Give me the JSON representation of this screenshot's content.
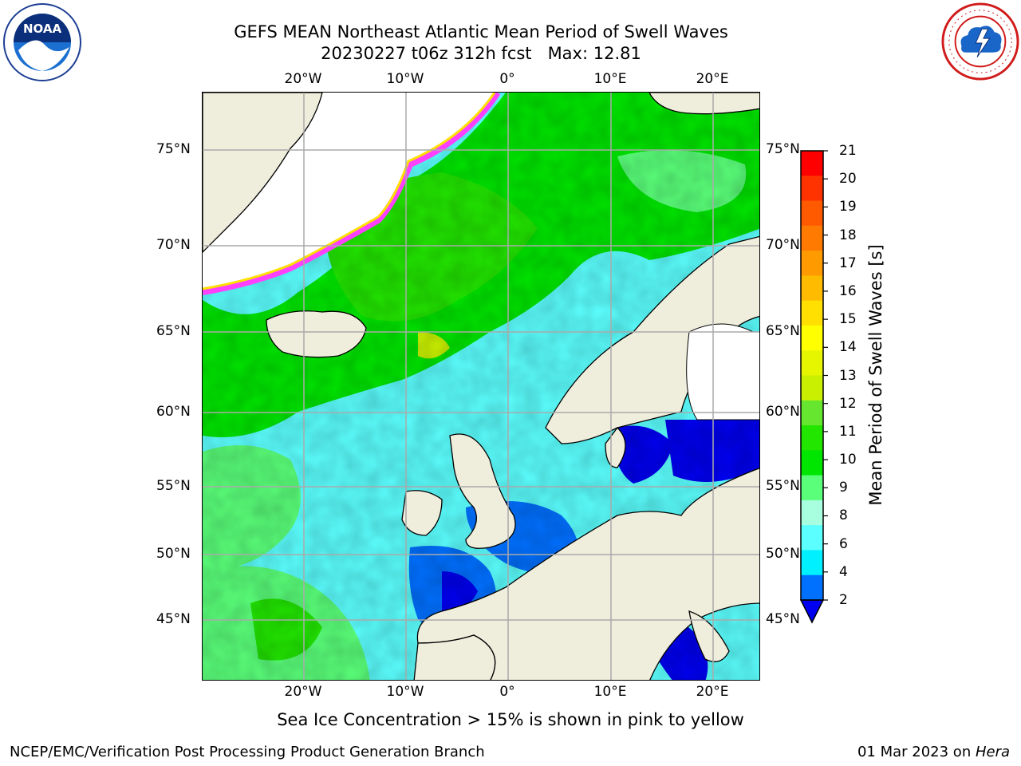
{
  "title": {
    "line1": "GEFS MEAN Northeast Atlantic Mean Period of Swell Waves",
    "line2": "20230227 t06z 312h fcst   Max: 12.81"
  },
  "map": {
    "projection": "lat-lon",
    "lon_range": [
      -30,
      25
    ],
    "lat_range": [
      41,
      78
    ],
    "lon_ticks": [
      "20°W",
      "10°W",
      "0°",
      "10°E",
      "20°E"
    ],
    "lat_ticks": [
      "75°N",
      "70°N",
      "65°N",
      "60°N",
      "55°N",
      "50°N",
      "45°N"
    ],
    "grid": true,
    "land_color": "#efeddc",
    "no_data_color": "#ffffff"
  },
  "colorbar": {
    "label": "Mean Period of Swell Waves [s]",
    "ticks": [
      "21",
      "20",
      "19",
      "18",
      "17",
      "16",
      "15",
      "14",
      "13",
      "12",
      "11",
      "10",
      "9",
      "8",
      "6",
      "4",
      "2"
    ],
    "colors": [
      "#ff0000",
      "#ff3300",
      "#ff5a00",
      "#ff7a00",
      "#ff9a00",
      "#ffbb00",
      "#ffe000",
      "#ffff00",
      "#e6f500",
      "#c8f000",
      "#66e62e",
      "#22e600",
      "#00e600",
      "#5aff7a",
      "#a8ffe0",
      "#5cffff",
      "#00f0ff",
      "#0070ff",
      "#0000f0"
    ]
  },
  "caption": "Sea Ice Concentration > 15% is shown in pink to yellow",
  "credit": "NCEP/EMC/Verification Post Processing Product Generation Branch",
  "date": {
    "text": "01 Mar 2023 on ",
    "host": "Hera"
  },
  "logos": {
    "left": "noaa-logo",
    "right": "nws-logo"
  }
}
